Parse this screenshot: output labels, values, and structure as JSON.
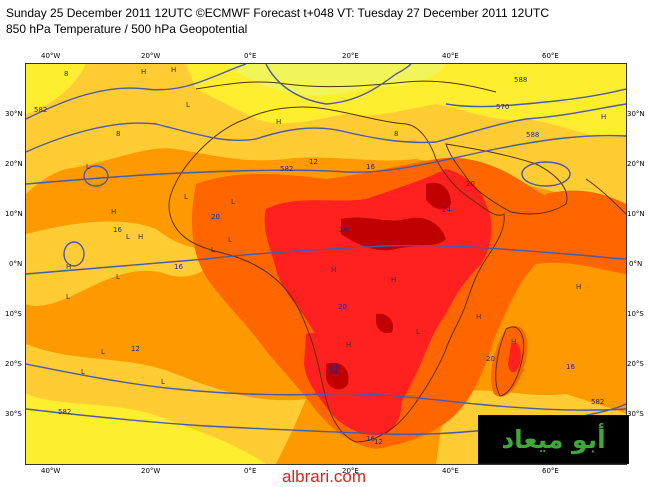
{
  "header": {
    "line1": "Sunday 25 December 2011 12UTC ©ECMWF Forecast t+048 VT: Tuesday 27 December 2011 12UTC",
    "line2": "850 hPa Temperature / 500 hPa Geopotential"
  },
  "map": {
    "lon_labels": [
      "40°W",
      "20°W",
      "0°E",
      "20°E",
      "40°E",
      "60°E"
    ],
    "lat_labels": [
      "30°N",
      "20°N",
      "10°N",
      "0°N",
      "10°S",
      "20°S",
      "30°S"
    ],
    "temp_contours": [
      "8",
      "8",
      "8",
      "12",
      "16",
      "16",
      "20",
      "20",
      "24",
      "24",
      "24",
      "16",
      "12",
      "16",
      "24",
      "20",
      "20",
      "16",
      "12"
    ],
    "height_contours": [
      "582",
      "570",
      "582",
      "582",
      "582",
      "588",
      "588"
    ],
    "pressure_centers": [
      "H",
      "H",
      "L",
      "H",
      "H",
      "L",
      "L",
      "L",
      "H",
      "L",
      "H",
      "L",
      "H",
      "L",
      "L",
      "H",
      "H",
      "L",
      "H",
      "H",
      "L",
      "L",
      "H",
      "H",
      "L",
      "L"
    ],
    "colors": {
      "yellow": "#ffee30",
      "light_orange": "#ffcc33",
      "orange": "#ff9900",
      "dark_orange": "#ff6600",
      "red": "#ff2020",
      "dark_red": "#c00000",
      "contour_blue": "#4a5aa8",
      "coast": "#5a3000"
    }
  },
  "logo": {
    "text": "أبو ميعاد"
  },
  "footer": {
    "website": "albrari.com"
  }
}
